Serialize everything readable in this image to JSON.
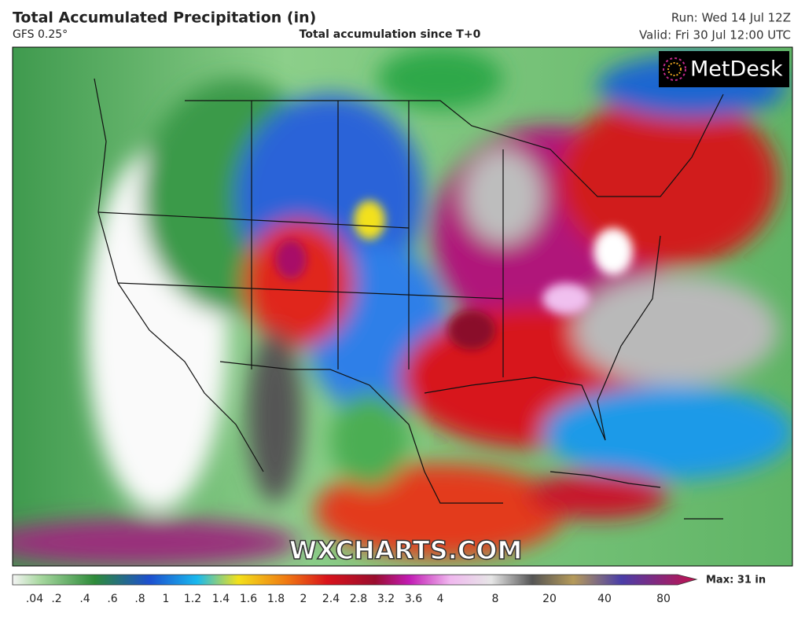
{
  "header": {
    "title": "Total Accumulated Precipitation (in)",
    "model": "GFS 0.25°",
    "subtitle": "Total accumulation since T+0",
    "run": "Run: Wed 14 Jul 12Z",
    "valid": "Valid: Fri 30 Jul 12:00 UTC"
  },
  "map": {
    "logo": "MetDesk",
    "watermark": "WXCHARTS.COM"
  },
  "colorbar": {
    "labels": [
      ".04",
      ".2",
      ".4",
      ".6",
      ".8",
      "1",
      "1.2",
      "1.4",
      "1.6",
      "1.8",
      "2",
      "2.4",
      "2.8",
      "3.2",
      "3.6",
      "4",
      "8",
      "20",
      "40",
      "80"
    ],
    "max": "Max: 31 in"
  }
}
